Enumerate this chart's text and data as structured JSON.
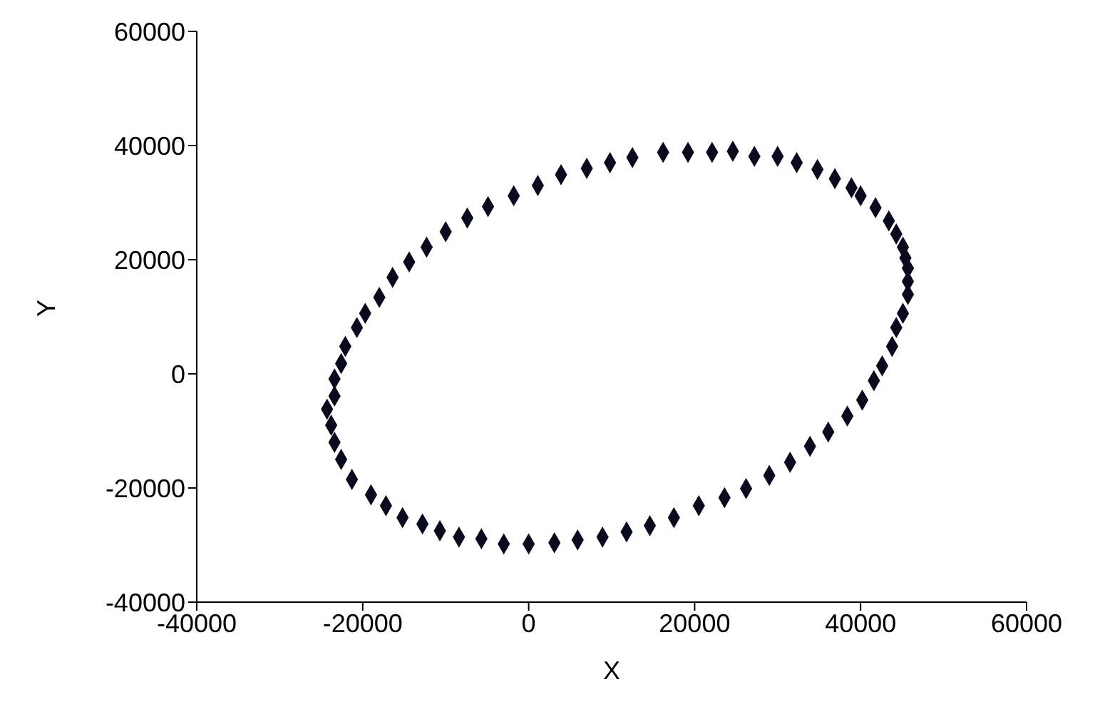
{
  "chart_data": {
    "type": "scatter",
    "xlabel": "X",
    "ylabel": "Y",
    "xlim": [
      -40000,
      60000
    ],
    "xticks": [
      -40000,
      -20000,
      0,
      20000,
      40000,
      60000
    ],
    "ylim": [
      -40000,
      60000
    ],
    "yticks": [
      -40000,
      -20000,
      0,
      20000,
      40000,
      60000
    ],
    "grid": false,
    "legend": false,
    "marker": "diamond",
    "series": [
      {
        "color": "#0a0a1e",
        "x": [
          -23400,
          -23400,
          -22600,
          -22100,
          -20700,
          -19700,
          -18000,
          -16400,
          -14400,
          -12300,
          -10000,
          -7400,
          -4900,
          -1800,
          1100,
          3900,
          7000,
          9800,
          12500,
          16200,
          19200,
          22100,
          24600,
          27200,
          30000,
          32300,
          34800,
          36900,
          38900,
          40000,
          41800,
          43400,
          44300,
          45100,
          45400,
          45700,
          45700,
          45700,
          45100,
          44300,
          43800,
          42600,
          41600,
          40200,
          38400,
          36100,
          33900,
          31500,
          29000,
          26200,
          23600,
          20500,
          17500,
          14600,
          11800,
          8900,
          5900,
          3100,
          0,
          -3000,
          -5700,
          -8400,
          -10700,
          -12800,
          -15200,
          -17200,
          -19000,
          -21300,
          -22600,
          -23400,
          -23800,
          -24300
        ],
        "values": [
          -3900,
          -900,
          1800,
          4800,
          8100,
          10600,
          13400,
          16900,
          19600,
          22200,
          24900,
          27300,
          29300,
          31200,
          33000,
          34900,
          36000,
          37000,
          37900,
          38800,
          38800,
          38800,
          39000,
          38100,
          38100,
          37000,
          35800,
          34200,
          32600,
          31200,
          29100,
          26800,
          24500,
          22200,
          20300,
          18500,
          16200,
          13900,
          10600,
          8100,
          4800,
          1400,
          -1200,
          -4600,
          -7400,
          -10200,
          -12700,
          -15500,
          -17800,
          -20100,
          -21700,
          -23100,
          -25200,
          -26600,
          -27700,
          -28600,
          -29100,
          -29600,
          -29800,
          -29800,
          -28900,
          -28600,
          -27500,
          -26300,
          -25200,
          -23100,
          -21200,
          -18500,
          -15000,
          -12000,
          -9000,
          -6200
        ]
      }
    ]
  }
}
